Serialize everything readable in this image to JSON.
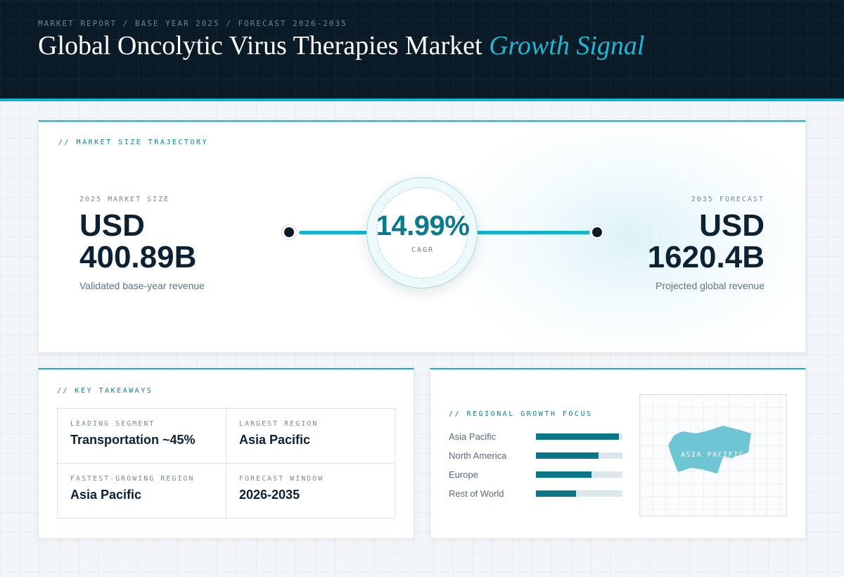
{
  "header": {
    "breadcrumb": "MARKET REPORT / BASE YEAR 2025 / FORECAST 2026-2035",
    "title_main": "Global Oncolytic Virus Therapies Market",
    "title_accent": "Growth Signal"
  },
  "trajectory": {
    "label": "// MARKET SIZE TRAJECTORY",
    "start": {
      "caption": "2025 MARKET SIZE",
      "currency": "USD",
      "value": "400.89B",
      "subtext": "Validated base-year revenue"
    },
    "cagr": {
      "value": "14.99%",
      "caption": "CAGR"
    },
    "end": {
      "caption": "2035 FORECAST",
      "currency": "USD",
      "value": "1620.4B",
      "subtext": "Projected global revenue"
    }
  },
  "takeaways": {
    "label": "// KEY TAKEAWAYS",
    "items": [
      {
        "caption": "LEADING SEGMENT",
        "value": "Transportation ~45%"
      },
      {
        "caption": "LARGEST REGION",
        "value": "Asia Pacific"
      },
      {
        "caption": "FASTEST-GROWING REGION",
        "value": "Asia Pacific"
      },
      {
        "caption": "FORECAST WINDOW",
        "value": "2026-2035"
      }
    ]
  },
  "regional": {
    "label": "// REGIONAL GROWTH FOCUS",
    "bars": [
      {
        "name": "Asia Pacific",
        "level": 0.96
      },
      {
        "name": "North America",
        "level": 0.72
      },
      {
        "name": "Europe",
        "level": 0.64
      },
      {
        "name": "Rest of World",
        "level": 0.46
      }
    ],
    "map_label": "ASIA PACIFIC"
  },
  "colors": {
    "accent": "#12b3cc",
    "accent_dark": "#0b7589",
    "header_bg": "#0a1a27",
    "text_dark": "#0c2233"
  }
}
